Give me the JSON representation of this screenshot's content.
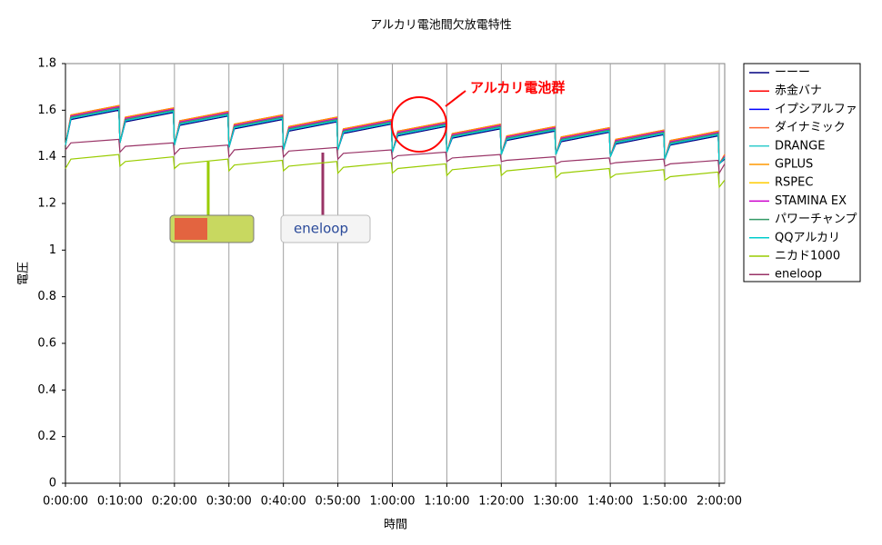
{
  "chart_data": {
    "type": "line",
    "title": "アルカリ電池間欠放電特性",
    "x_label": "時間",
    "y_label": "電圧",
    "xlim": [
      0,
      121
    ],
    "ylim": [
      0,
      1.8
    ],
    "xticks": [
      {
        "value": 0,
        "label": "0:00:00"
      },
      {
        "value": 10,
        "label": "0:10:00"
      },
      {
        "value": 20,
        "label": "0:20:00"
      },
      {
        "value": 30,
        "label": "0:30:00"
      },
      {
        "value": 40,
        "label": "0:40:00"
      },
      {
        "value": 50,
        "label": "0:50:00"
      },
      {
        "value": 60,
        "label": "1:00:00"
      },
      {
        "value": 70,
        "label": "1:10:00"
      },
      {
        "value": 80,
        "label": "1:20:00"
      },
      {
        "value": 90,
        "label": "1:30:00"
      },
      {
        "value": 100,
        "label": "1:40:00"
      },
      {
        "value": 110,
        "label": "1:50:00"
      },
      {
        "value": 120,
        "label": "2:00:00"
      }
    ],
    "yticks": [
      0,
      0.2,
      0.4,
      0.6,
      0.8,
      1,
      1.2,
      1.4,
      1.6,
      1.8
    ],
    "grid": "x",
    "legend": "right",
    "annotations": [
      "アルカリ電池群",
      "eneloop"
    ],
    "x": [
      0,
      1,
      9.8,
      10,
      11,
      19.8,
      20,
      21,
      29.8,
      30,
      31,
      39.8,
      40,
      41,
      49.8,
      50,
      51,
      59.8,
      60,
      61,
      69.8,
      70,
      71,
      79.8,
      80,
      81,
      89.8,
      90,
      91,
      99.8,
      100,
      101,
      109.8,
      110,
      111,
      119.8,
      120,
      121
    ],
    "series": [
      {
        "name": "ーーー",
        "color": "#000080",
        "values": [
          1.45,
          1.56,
          1.6,
          1.46,
          1.55,
          1.59,
          1.45,
          1.535,
          1.575,
          1.44,
          1.52,
          1.56,
          1.43,
          1.51,
          1.55,
          1.43,
          1.5,
          1.54,
          1.42,
          1.49,
          1.53,
          1.42,
          1.48,
          1.52,
          1.41,
          1.47,
          1.51,
          1.41,
          1.465,
          1.505,
          1.4,
          1.455,
          1.495,
          1.39,
          1.45,
          1.49,
          1.37,
          1.39
        ]
      },
      {
        "name": "赤金バナ",
        "color": "#ff0000",
        "values": [
          1.45,
          1.58,
          1.62,
          1.46,
          1.57,
          1.61,
          1.45,
          1.555,
          1.595,
          1.44,
          1.54,
          1.58,
          1.43,
          1.53,
          1.57,
          1.43,
          1.52,
          1.56,
          1.42,
          1.51,
          1.55,
          1.42,
          1.5,
          1.54,
          1.41,
          1.49,
          1.53,
          1.41,
          1.485,
          1.525,
          1.4,
          1.475,
          1.515,
          1.39,
          1.47,
          1.51,
          1.37,
          1.41
        ]
      },
      {
        "name": "イプシアルファ",
        "color": "#0000ff",
        "values": [
          1.45,
          1.565,
          1.605,
          1.46,
          1.555,
          1.595,
          1.45,
          1.54,
          1.58,
          1.44,
          1.525,
          1.565,
          1.43,
          1.515,
          1.555,
          1.43,
          1.505,
          1.545,
          1.42,
          1.495,
          1.535,
          1.42,
          1.485,
          1.525,
          1.41,
          1.475,
          1.515,
          1.41,
          1.47,
          1.51,
          1.4,
          1.46,
          1.5,
          1.39,
          1.455,
          1.495,
          1.37,
          1.395
        ]
      },
      {
        "name": "ダイナミック",
        "color": "#ff6633",
        "values": [
          1.45,
          1.575,
          1.615,
          1.46,
          1.565,
          1.605,
          1.45,
          1.55,
          1.59,
          1.44,
          1.535,
          1.575,
          1.43,
          1.525,
          1.565,
          1.43,
          1.515,
          1.555,
          1.42,
          1.505,
          1.545,
          1.42,
          1.495,
          1.535,
          1.41,
          1.485,
          1.525,
          1.41,
          1.48,
          1.52,
          1.4,
          1.47,
          1.51,
          1.39,
          1.465,
          1.505,
          1.37,
          1.405
        ]
      },
      {
        "name": "DRANGE",
        "color": "#33cccc",
        "values": [
          1.45,
          1.57,
          1.61,
          1.46,
          1.56,
          1.6,
          1.45,
          1.545,
          1.585,
          1.44,
          1.53,
          1.57,
          1.43,
          1.52,
          1.56,
          1.43,
          1.51,
          1.55,
          1.42,
          1.5,
          1.54,
          1.42,
          1.49,
          1.53,
          1.41,
          1.48,
          1.52,
          1.41,
          1.475,
          1.515,
          1.4,
          1.465,
          1.505,
          1.39,
          1.46,
          1.5,
          1.37,
          1.4
        ]
      },
      {
        "name": "GPLUS",
        "color": "#ff9900",
        "values": [
          1.45,
          1.58,
          1.62,
          1.46,
          1.57,
          1.61,
          1.45,
          1.555,
          1.595,
          1.44,
          1.54,
          1.58,
          1.43,
          1.53,
          1.57,
          1.43,
          1.52,
          1.56,
          1.42,
          1.51,
          1.55,
          1.42,
          1.5,
          1.54,
          1.41,
          1.49,
          1.53,
          1.41,
          1.485,
          1.525,
          1.4,
          1.475,
          1.515,
          1.39,
          1.47,
          1.51,
          1.37,
          1.41
        ]
      },
      {
        "name": "RSPEC",
        "color": "#ffcc00",
        "values": [
          1.45,
          1.575,
          1.615,
          1.46,
          1.565,
          1.605,
          1.45,
          1.55,
          1.59,
          1.44,
          1.535,
          1.575,
          1.43,
          1.525,
          1.565,
          1.43,
          1.515,
          1.555,
          1.42,
          1.505,
          1.545,
          1.42,
          1.495,
          1.535,
          1.41,
          1.485,
          1.525,
          1.41,
          1.48,
          1.52,
          1.4,
          1.47,
          1.51,
          1.39,
          1.465,
          1.505,
          1.37,
          1.405
        ]
      },
      {
        "name": "STAMINA EX",
        "color": "#cc00cc",
        "values": [
          1.45,
          1.575,
          1.615,
          1.46,
          1.565,
          1.605,
          1.45,
          1.55,
          1.59,
          1.44,
          1.535,
          1.575,
          1.43,
          1.525,
          1.565,
          1.43,
          1.515,
          1.555,
          1.42,
          1.505,
          1.545,
          1.42,
          1.495,
          1.535,
          1.41,
          1.485,
          1.525,
          1.41,
          1.48,
          1.52,
          1.4,
          1.47,
          1.51,
          1.39,
          1.465,
          1.505,
          1.37,
          1.405
        ]
      },
      {
        "name": "パワーチャンプ",
        "color": "#339966",
        "values": [
          1.45,
          1.57,
          1.61,
          1.46,
          1.56,
          1.6,
          1.45,
          1.545,
          1.585,
          1.44,
          1.53,
          1.57,
          1.43,
          1.52,
          1.56,
          1.43,
          1.51,
          1.55,
          1.42,
          1.5,
          1.54,
          1.42,
          1.49,
          1.53,
          1.41,
          1.48,
          1.52,
          1.41,
          1.475,
          1.515,
          1.4,
          1.465,
          1.505,
          1.39,
          1.46,
          1.5,
          1.37,
          1.4
        ]
      },
      {
        "name": "QQアルカリ",
        "color": "#00cccc",
        "values": [
          1.45,
          1.565,
          1.605,
          1.46,
          1.555,
          1.595,
          1.45,
          1.54,
          1.58,
          1.44,
          1.525,
          1.565,
          1.43,
          1.515,
          1.555,
          1.43,
          1.505,
          1.545,
          1.42,
          1.495,
          1.535,
          1.42,
          1.485,
          1.525,
          1.41,
          1.475,
          1.515,
          1.41,
          1.47,
          1.51,
          1.4,
          1.46,
          1.5,
          1.39,
          1.455,
          1.495,
          1.37,
          1.395
        ]
      },
      {
        "name": "ニカド1000",
        "color": "#99cc00",
        "values": [
          1.35,
          1.39,
          1.41,
          1.36,
          1.38,
          1.4,
          1.35,
          1.37,
          1.39,
          1.34,
          1.365,
          1.385,
          1.34,
          1.36,
          1.38,
          1.33,
          1.355,
          1.375,
          1.33,
          1.35,
          1.37,
          1.32,
          1.345,
          1.365,
          1.32,
          1.34,
          1.36,
          1.31,
          1.33,
          1.35,
          1.31,
          1.325,
          1.345,
          1.3,
          1.315,
          1.335,
          1.27,
          1.3
        ]
      },
      {
        "name": "eneloop",
        "color": "#993366",
        "values": [
          1.43,
          1.46,
          1.475,
          1.42,
          1.445,
          1.46,
          1.41,
          1.435,
          1.45,
          1.4,
          1.43,
          1.445,
          1.4,
          1.425,
          1.44,
          1.39,
          1.415,
          1.43,
          1.39,
          1.405,
          1.42,
          1.38,
          1.395,
          1.41,
          1.38,
          1.385,
          1.4,
          1.37,
          1.38,
          1.395,
          1.37,
          1.375,
          1.39,
          1.36,
          1.37,
          1.385,
          1.33,
          1.37
        ]
      }
    ]
  }
}
